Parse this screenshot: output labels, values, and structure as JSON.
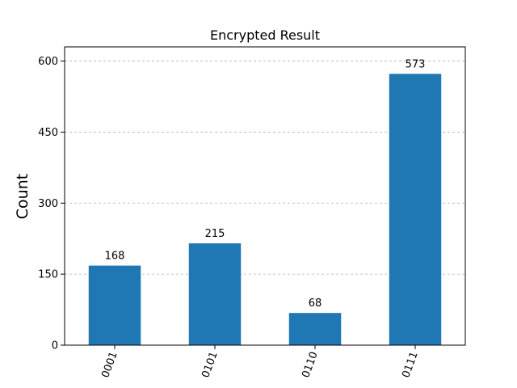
{
  "chart_data": {
    "type": "bar",
    "title": "Encrypted Result",
    "xlabel": "",
    "ylabel": "Count",
    "categories": [
      "0001",
      "0101",
      "0110",
      "0111"
    ],
    "values": [
      168,
      215,
      68,
      573
    ],
    "value_labels": [
      "168",
      "215",
      "68",
      "573"
    ],
    "ylim": [
      0,
      630
    ],
    "yticks": [
      0,
      150,
      300,
      450,
      600
    ],
    "ytick_labels": [
      "0",
      "150",
      "300",
      "450",
      "600"
    ],
    "grid": "y, dashed",
    "bar_color": "#1f77b4",
    "xtick_rotation": "70"
  }
}
